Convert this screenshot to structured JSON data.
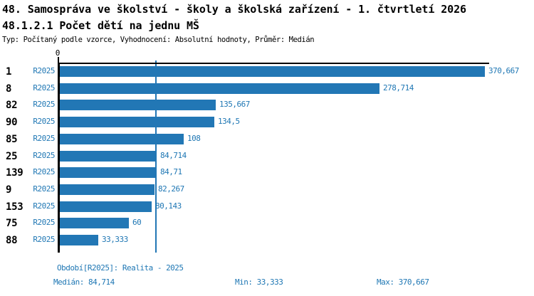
{
  "header": {
    "title": "48. Samospráva ve školství - školy a školská zařízení - 1. čtvrtletí 2026",
    "subtitle": "48.1.2.1 Počet dětí na jednu MŠ",
    "meta": "Typ: Počítaný podle vzorce, Vyhodnocení: Absolutní hodnoty, Průměr: Medián"
  },
  "colors": {
    "bar": "#2277b5",
    "accent_text": "#1f77b4",
    "axis": "#000000"
  },
  "chart_data": {
    "type": "bar",
    "orientation": "horizontal",
    "title": "48.1.2.1 Počet dětí na jednu MŠ",
    "series_label": "R2025",
    "categories": [
      "1",
      "8",
      "82",
      "90",
      "85",
      "25",
      "139",
      "9",
      "153",
      "75",
      "88"
    ],
    "values": [
      370.667,
      278.714,
      135.667,
      134.5,
      108,
      84.714,
      84.71,
      82.267,
      80.143,
      60,
      33.333
    ],
    "value_labels": [
      "370,667",
      "278,714",
      "135,667",
      "134,5",
      "108",
      "84,714",
      "84,71",
      "82,267",
      "80,143",
      "60",
      "33,333"
    ],
    "xlim": [
      0,
      375
    ],
    "x_tick_labels": [
      "0"
    ],
    "median_value": 84.714,
    "median_line": true,
    "grid": false,
    "legend": false
  },
  "footer": {
    "period": "Období[R2025]: Realita - 2025",
    "median": "Medián: 84,714",
    "min": "Min: 33,333",
    "max": "Max: 370,667"
  }
}
